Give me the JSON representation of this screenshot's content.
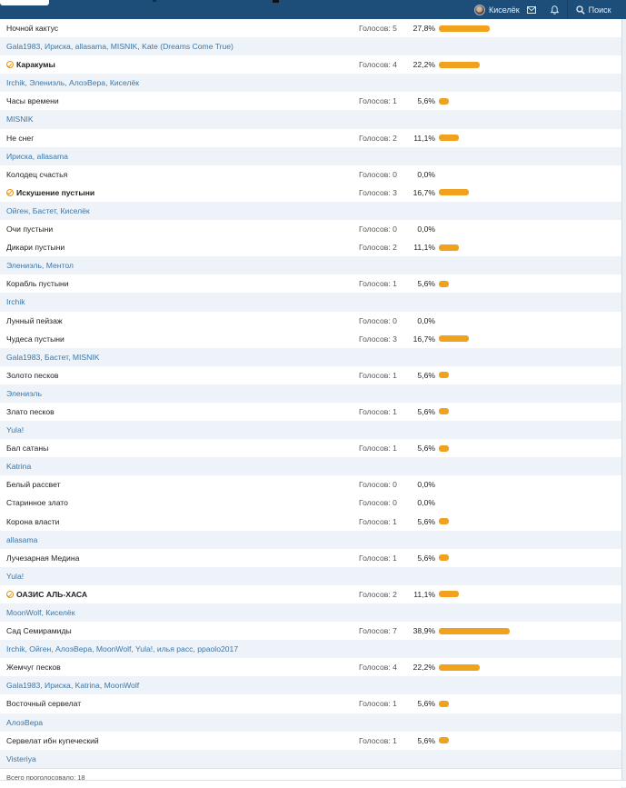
{
  "colors": {
    "navbar": "#1d4e79",
    "bar": "#f0a11e",
    "voter_link": "#3c76a8",
    "voter_row_bg": "#edf3f8"
  },
  "header": {
    "username": "Киселёк",
    "search_label": "Поиск",
    "icons": [
      "avatar",
      "envelope-icon",
      "bell-icon",
      "search-icon"
    ]
  },
  "votes_label": "Голосов:",
  "rows": [
    {
      "type": "option",
      "label": "Ночной кактус",
      "votes": 5,
      "pct": "27,8%",
      "share": 27.8
    },
    {
      "type": "voters",
      "text": "Gala1983, Ириска, allasama, MISNIK, Kate (Dreams Come True)"
    },
    {
      "type": "option",
      "label": "Каракумы",
      "votes": 4,
      "pct": "22,2%",
      "share": 22.2,
      "chosen": true
    },
    {
      "type": "voters",
      "text": "Irchik, Элениэль, АлоэВера, Киселёк"
    },
    {
      "type": "option",
      "label": "Часы времени",
      "votes": 1,
      "pct": "5,6%",
      "share": 5.6
    },
    {
      "type": "voters",
      "text": "MISNIK"
    },
    {
      "type": "option",
      "label": "Не снег",
      "votes": 2,
      "pct": "11,1%",
      "share": 11.1
    },
    {
      "type": "voters",
      "text": "Ириска, allasama"
    },
    {
      "type": "option",
      "label": "Колодец счастья",
      "votes": 0,
      "pct": "0,0%",
      "share": 0
    },
    {
      "type": "option",
      "label": "Искушение пустыни",
      "votes": 3,
      "pct": "16,7%",
      "share": 16.7,
      "chosen": true
    },
    {
      "type": "voters",
      "text": "Ойген, Бастет, Киселёк"
    },
    {
      "type": "option",
      "label": "Очи пустыни",
      "votes": 0,
      "pct": "0,0%",
      "share": 0
    },
    {
      "type": "option",
      "label": "Дикари пустыни",
      "votes": 2,
      "pct": "11,1%",
      "share": 11.1
    },
    {
      "type": "voters",
      "text": "Элениэль, Ментол"
    },
    {
      "type": "option",
      "label": "Корабль пустыни",
      "votes": 1,
      "pct": "5,6%",
      "share": 5.6
    },
    {
      "type": "voters",
      "text": "Irchik"
    },
    {
      "type": "option",
      "label": "Лунный пейзаж",
      "votes": 0,
      "pct": "0,0%",
      "share": 0
    },
    {
      "type": "option",
      "label": "Чудеса пустыни",
      "votes": 3,
      "pct": "16,7%",
      "share": 16.7
    },
    {
      "type": "voters",
      "text": "Gala1983, Бастет, MISNIK"
    },
    {
      "type": "option",
      "label": "Золото песков",
      "votes": 1,
      "pct": "5,6%",
      "share": 5.6
    },
    {
      "type": "voters",
      "text": "Элениэль"
    },
    {
      "type": "option",
      "label": "Злато песков",
      "votes": 1,
      "pct": "5,6%",
      "share": 5.6
    },
    {
      "type": "voters",
      "text": "Yula!"
    },
    {
      "type": "option",
      "label": "Бал сатаны",
      "votes": 1,
      "pct": "5,6%",
      "share": 5.6
    },
    {
      "type": "voters",
      "text": "Katrina"
    },
    {
      "type": "option",
      "label": "Белый рассвет",
      "votes": 0,
      "pct": "0,0%",
      "share": 0
    },
    {
      "type": "option",
      "label": "Старинное злато",
      "votes": 0,
      "pct": "0,0%",
      "share": 0
    },
    {
      "type": "option",
      "label": "Корона власти",
      "votes": 1,
      "pct": "5,6%",
      "share": 5.6
    },
    {
      "type": "voters",
      "text": "allasama"
    },
    {
      "type": "option",
      "label": "Лучезарная Медина",
      "votes": 1,
      "pct": "5,6%",
      "share": 5.6
    },
    {
      "type": "voters",
      "text": "Yula!"
    },
    {
      "type": "option",
      "label": "ОАЗИС АЛЬ-ХАСА",
      "votes": 2,
      "pct": "11,1%",
      "share": 11.1,
      "chosen": true
    },
    {
      "type": "voters",
      "text": "MoonWolf, Киселёк"
    },
    {
      "type": "option",
      "label": "Сад Семирамиды",
      "votes": 7,
      "pct": "38,9%",
      "share": 38.9
    },
    {
      "type": "voters",
      "text": "Irchik, Ойген, АлоэВера, MoonWolf, Yula!, илья расс, ppaolo2017"
    },
    {
      "type": "option",
      "label": "Жемчуг песков",
      "votes": 4,
      "pct": "22,2%",
      "share": 22.2
    },
    {
      "type": "voters",
      "text": "Gala1983, Ириска, Katrina, MoonWolf"
    },
    {
      "type": "option",
      "label": "Восточный сервелат",
      "votes": 1,
      "pct": "5,6%",
      "share": 5.6
    },
    {
      "type": "voters",
      "text": "АлоэВера"
    },
    {
      "type": "option",
      "label": "Сервелат ибн купеческий",
      "votes": 1,
      "pct": "5,6%",
      "share": 5.6
    },
    {
      "type": "voters",
      "text": "Visteriya"
    }
  ],
  "footer": {
    "total_text": "Всего проголосовало: 18"
  }
}
